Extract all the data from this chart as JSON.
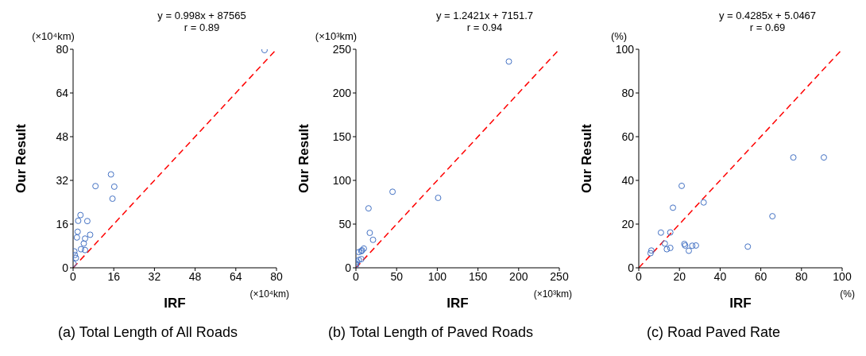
{
  "chart_data": [
    {
      "type": "scatter",
      "title": "(a) Total Length of All Roads",
      "xlabel": "IRF",
      "ylabel": "Our Result",
      "annotations": [
        "y = 0.998x + 87565",
        "r = 0.89",
        "(×10⁴km)",
        "(×10⁴km)"
      ],
      "xlim": [
        0,
        80
      ],
      "ylim": [
        0,
        80
      ],
      "xticks": [
        0,
        16,
        32,
        48,
        64,
        80
      ],
      "yticks": [
        0,
        16,
        32,
        48,
        64,
        80
      ],
      "grid": false,
      "marker": "circle",
      "series": [
        {
          "color": "#4472c4",
          "x": [
            75.3,
            14.9,
            16.2,
            15.5,
            8.8,
            2.9,
            2.0,
            5.6,
            1.8,
            1.5,
            6.7,
            4.7,
            4.2,
            3.1,
            4.7,
            0.5,
            0.7,
            1.1,
            0.2
          ],
          "values": [
            79.7,
            34.2,
            29.7,
            25.3,
            29.9,
            19.3,
            17.2,
            17.1,
            13.2,
            11.1,
            12.1,
            10.7,
            8.9,
            6.8,
            6.5,
            6.0,
            4.7,
            3.6,
            1.5
          ]
        },
        {
          "type": "line",
          "color": "#ff0000",
          "line_style": "dashed",
          "marker": "none",
          "x": [
            0,
            80
          ],
          "values": [
            0,
            80
          ]
        }
      ]
    },
    {
      "type": "scatter",
      "title": "(b) Total Length of Paved Roads",
      "xlabel": "IRF",
      "ylabel": "Our Result",
      "annotations": [
        "y = 1.2421x + 7151.7",
        "r = 0.94",
        "(×10³km)",
        "(×10³km)"
      ],
      "xlim": [
        0,
        250
      ],
      "ylim": [
        0,
        250
      ],
      "xticks": [
        0,
        50,
        100,
        150,
        200,
        250
      ],
      "yticks": [
        0,
        50,
        100,
        150,
        200,
        250
      ],
      "grid": false,
      "marker": "circle",
      "series": [
        {
          "color": "#4472c4",
          "x": [
            188,
            101,
            45,
            15.5,
            17,
            21,
            3.6,
            7.5,
            9.7,
            6.6,
            6.6,
            3.6,
            1.2,
            0.3,
            0.2
          ],
          "values": [
            236,
            80,
            87,
            68,
            40,
            32,
            18,
            20,
            22,
            19,
            10,
            9,
            7,
            5,
            3
          ]
        },
        {
          "type": "line",
          "color": "#ff0000",
          "line_style": "dashed",
          "marker": "none",
          "x": [
            0,
            250
          ],
          "values": [
            0,
            250
          ]
        }
      ]
    },
    {
      "type": "scatter",
      "title": "(c) Road Paved Rate",
      "xlabel": "IRF",
      "ylabel": "Our Result",
      "annotations": [
        "y = 0.4285x + 5.0467",
        "r = 0.69",
        "(%)",
        "(%)"
      ],
      "xlim": [
        0,
        100
      ],
      "ylim": [
        0,
        100
      ],
      "xticks": [
        0,
        20,
        40,
        60,
        80,
        100
      ],
      "yticks": [
        0,
        20,
        40,
        60,
        80,
        100
      ],
      "grid": false,
      "marker": "circle",
      "series": [
        {
          "color": "#4472c4",
          "x": [
            21.1,
            31.9,
            16.8,
            65.7,
            10.9,
            15.5,
            12.8,
            22.4,
            22.8,
            28.1,
            26.3,
            15.5,
            13.8,
            24.6,
            53.6,
            6.2,
            5.8,
            76,
            91
          ],
          "values": [
            37.5,
            29.9,
            27.5,
            23.6,
            16.1,
            16.2,
            11.1,
            10.9,
            10.2,
            10.2,
            10.1,
            9.1,
            8.5,
            7.8,
            9.7,
            7.9,
            6.7,
            50.5,
            50.5
          ]
        },
        {
          "type": "line",
          "color": "#ff0000",
          "line_style": "dashed",
          "marker": "none",
          "x": [
            0,
            100
          ],
          "values": [
            0,
            100
          ]
        }
      ]
    }
  ]
}
